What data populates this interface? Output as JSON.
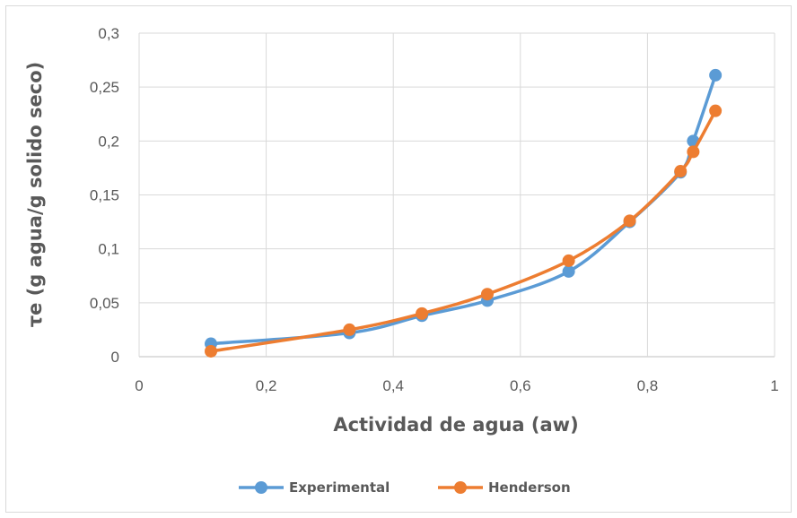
{
  "chart_data": {
    "type": "line",
    "xlabel": "Actividad de agua (aw)",
    "ylabel": "τe (g agua/g solido seco)",
    "xlim": [
      0,
      1
    ],
    "ylim": [
      0,
      0.3
    ],
    "x_ticks": [
      "0",
      "0,2",
      "0,4",
      "0,6",
      "0,8",
      "1"
    ],
    "y_ticks": [
      "0",
      "0,05",
      "0,1",
      "0,15",
      "0,2",
      "0,25",
      "0,3"
    ],
    "grid": true,
    "legend_position": "bottom",
    "series": [
      {
        "name": "Experimental",
        "color": "#5b9bd5",
        "points": [
          [
            0.113,
            0.012
          ],
          [
            0.331,
            0.022
          ],
          [
            0.445,
            0.038
          ],
          [
            0.548,
            0.052
          ],
          [
            0.676,
            0.079
          ],
          [
            0.772,
            0.125
          ],
          [
            0.852,
            0.171
          ],
          [
            0.872,
            0.2
          ],
          [
            0.907,
            0.261
          ]
        ]
      },
      {
        "name": "Henderson",
        "color": "#ed7d31",
        "points": [
          [
            0.113,
            0.005
          ],
          [
            0.331,
            0.025
          ],
          [
            0.445,
            0.04
          ],
          [
            0.548,
            0.058
          ],
          [
            0.676,
            0.089
          ],
          [
            0.772,
            0.126
          ],
          [
            0.852,
            0.172
          ],
          [
            0.872,
            0.19
          ],
          [
            0.907,
            0.228
          ]
        ]
      }
    ]
  }
}
